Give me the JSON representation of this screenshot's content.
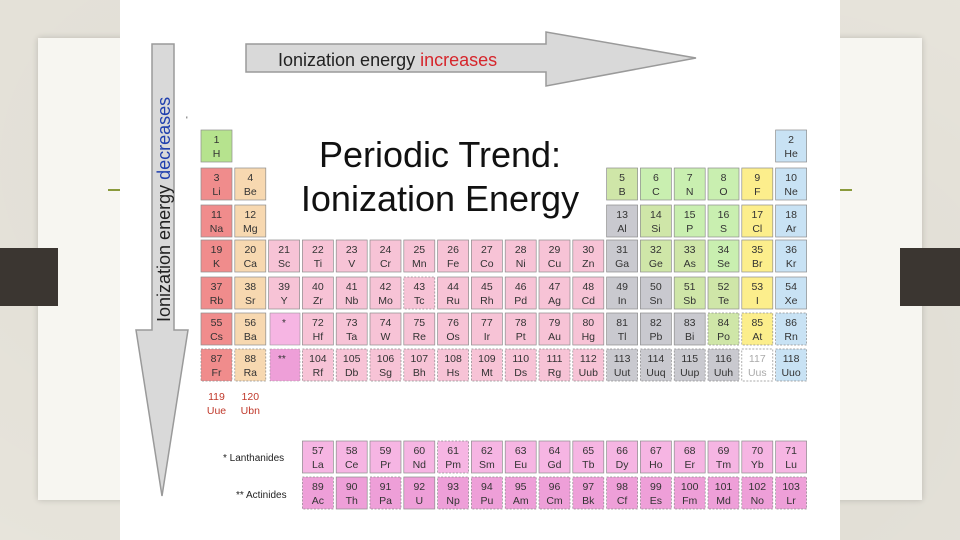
{
  "slide": {
    "title_line1": "Periodic Trend:",
    "title_line2": "Ionization Energy"
  },
  "arrows": {
    "horizontal_prefix": "Ionization energy ",
    "horizontal_emphasis": "increases",
    "vertical_prefix": "Ionization energy ",
    "vertical_emphasis": "decreases"
  },
  "labels": {
    "lanthanides": "* Lanthanides",
    "actinides": "** Actinides",
    "star": "*",
    "double_star": "**"
  },
  "colors": {
    "accent": "#8a9a3c",
    "emphasis": "#d6262c",
    "alkali": "#f08c8c",
    "alkaline_earth": "#f7d8b0",
    "transition": "#f7c3d6",
    "post_transition": "#c9c9cf",
    "metalloid": "#cfe6a8",
    "nonmetal": "#c9efb0",
    "halogen": "#fcee8c",
    "noble_gas": "#c8e2f4",
    "lanthanide": "#f6b5e3",
    "actinide": "#ee9fd8",
    "hydrogen": "#b6e38e"
  },
  "elements": [
    {
      "n": "1",
      "s": "H",
      "c": "hydrogen",
      "col": 1,
      "row": 1
    },
    {
      "n": "2",
      "s": "He",
      "c": "noble_gas",
      "col": 18,
      "row": 1
    },
    {
      "n": "3",
      "s": "Li",
      "c": "alkali",
      "col": 1,
      "row": 2
    },
    {
      "n": "4",
      "s": "Be",
      "c": "alkaline_earth",
      "col": 2,
      "row": 2
    },
    {
      "n": "5",
      "s": "B",
      "c": "metalloid",
      "col": 13,
      "row": 2
    },
    {
      "n": "6",
      "s": "C",
      "c": "nonmetal",
      "col": 14,
      "row": 2
    },
    {
      "n": "7",
      "s": "N",
      "c": "nonmetal",
      "col": 15,
      "row": 2
    },
    {
      "n": "8",
      "s": "O",
      "c": "nonmetal",
      "col": 16,
      "row": 2
    },
    {
      "n": "9",
      "s": "F",
      "c": "halogen",
      "col": 17,
      "row": 2
    },
    {
      "n": "10",
      "s": "Ne",
      "c": "noble_gas",
      "col": 18,
      "row": 2
    },
    {
      "n": "11",
      "s": "Na",
      "c": "alkali",
      "col": 1,
      "row": 3
    },
    {
      "n": "12",
      "s": "Mg",
      "c": "alkaline_earth",
      "col": 2,
      "row": 3
    },
    {
      "n": "13",
      "s": "Al",
      "c": "post_transition",
      "col": 13,
      "row": 3
    },
    {
      "n": "14",
      "s": "Si",
      "c": "metalloid",
      "col": 14,
      "row": 3
    },
    {
      "n": "15",
      "s": "P",
      "c": "nonmetal",
      "col": 15,
      "row": 3
    },
    {
      "n": "16",
      "s": "S",
      "c": "nonmetal",
      "col": 16,
      "row": 3
    },
    {
      "n": "17",
      "s": "Cl",
      "c": "halogen",
      "col": 17,
      "row": 3
    },
    {
      "n": "18",
      "s": "Ar",
      "c": "noble_gas",
      "col": 18,
      "row": 3
    },
    {
      "n": "19",
      "s": "K",
      "c": "alkali",
      "col": 1,
      "row": 4
    },
    {
      "n": "20",
      "s": "Ca",
      "c": "alkaline_earth",
      "col": 2,
      "row": 4
    },
    {
      "n": "21",
      "s": "Sc",
      "c": "transition",
      "col": 3,
      "row": 4
    },
    {
      "n": "22",
      "s": "Ti",
      "c": "transition",
      "col": 4,
      "row": 4
    },
    {
      "n": "23",
      "s": "V",
      "c": "transition",
      "col": 5,
      "row": 4
    },
    {
      "n": "24",
      "s": "Cr",
      "c": "transition",
      "col": 6,
      "row": 4
    },
    {
      "n": "25",
      "s": "Mn",
      "c": "transition",
      "col": 7,
      "row": 4
    },
    {
      "n": "26",
      "s": "Fe",
      "c": "transition",
      "col": 8,
      "row": 4
    },
    {
      "n": "27",
      "s": "Co",
      "c": "transition",
      "col": 9,
      "row": 4
    },
    {
      "n": "28",
      "s": "Ni",
      "c": "transition",
      "col": 10,
      "row": 4
    },
    {
      "n": "29",
      "s": "Cu",
      "c": "transition",
      "col": 11,
      "row": 4
    },
    {
      "n": "30",
      "s": "Zn",
      "c": "transition",
      "col": 12,
      "row": 4
    },
    {
      "n": "31",
      "s": "Ga",
      "c": "post_transition",
      "col": 13,
      "row": 4
    },
    {
      "n": "32",
      "s": "Ge",
      "c": "metalloid",
      "col": 14,
      "row": 4
    },
    {
      "n": "33",
      "s": "As",
      "c": "metalloid",
      "col": 15,
      "row": 4
    },
    {
      "n": "34",
      "s": "Se",
      "c": "nonmetal",
      "col": 16,
      "row": 4
    },
    {
      "n": "35",
      "s": "Br",
      "c": "halogen",
      "col": 17,
      "row": 4
    },
    {
      "n": "36",
      "s": "Kr",
      "c": "noble_gas",
      "col": 18,
      "row": 4
    },
    {
      "n": "37",
      "s": "Rb",
      "c": "alkali",
      "col": 1,
      "row": 5
    },
    {
      "n": "38",
      "s": "Sr",
      "c": "alkaline_earth",
      "col": 2,
      "row": 5
    },
    {
      "n": "39",
      "s": "Y",
      "c": "transition",
      "col": 3,
      "row": 5
    },
    {
      "n": "40",
      "s": "Zr",
      "c": "transition",
      "col": 4,
      "row": 5
    },
    {
      "n": "41",
      "s": "Nb",
      "c": "transition",
      "col": 5,
      "row": 5
    },
    {
      "n": "42",
      "s": "Mo",
      "c": "transition",
      "col": 6,
      "row": 5
    },
    {
      "n": "43",
      "s": "Tc",
      "c": "transition",
      "col": 7,
      "row": 5,
      "d": true
    },
    {
      "n": "44",
      "s": "Ru",
      "c": "transition",
      "col": 8,
      "row": 5
    },
    {
      "n": "45",
      "s": "Rh",
      "c": "transition",
      "col": 9,
      "row": 5
    },
    {
      "n": "46",
      "s": "Pd",
      "c": "transition",
      "col": 10,
      "row": 5
    },
    {
      "n": "47",
      "s": "Ag",
      "c": "transition",
      "col": 11,
      "row": 5
    },
    {
      "n": "48",
      "s": "Cd",
      "c": "transition",
      "col": 12,
      "row": 5
    },
    {
      "n": "49",
      "s": "In",
      "c": "post_transition",
      "col": 13,
      "row": 5
    },
    {
      "n": "50",
      "s": "Sn",
      "c": "post_transition",
      "col": 14,
      "row": 5
    },
    {
      "n": "51",
      "s": "Sb",
      "c": "metalloid",
      "col": 15,
      "row": 5
    },
    {
      "n": "52",
      "s": "Te",
      "c": "metalloid",
      "col": 16,
      "row": 5
    },
    {
      "n": "53",
      "s": "I",
      "c": "halogen",
      "col": 17,
      "row": 5
    },
    {
      "n": "54",
      "s": "Xe",
      "c": "noble_gas",
      "col": 18,
      "row": 5
    },
    {
      "n": "55",
      "s": "Cs",
      "c": "alkali",
      "col": 1,
      "row": 6
    },
    {
      "n": "56",
      "s": "Ba",
      "c": "alkaline_earth",
      "col": 2,
      "row": 6
    },
    {
      "n": "72",
      "s": "Hf",
      "c": "transition",
      "col": 4,
      "row": 6
    },
    {
      "n": "73",
      "s": "Ta",
      "c": "transition",
      "col": 5,
      "row": 6
    },
    {
      "n": "74",
      "s": "W",
      "c": "transition",
      "col": 6,
      "row": 6
    },
    {
      "n": "75",
      "s": "Re",
      "c": "transition",
      "col": 7,
      "row": 6
    },
    {
      "n": "76",
      "s": "Os",
      "c": "transition",
      "col": 8,
      "row": 6
    },
    {
      "n": "77",
      "s": "Ir",
      "c": "transition",
      "col": 9,
      "row": 6
    },
    {
      "n": "78",
      "s": "Pt",
      "c": "transition",
      "col": 10,
      "row": 6
    },
    {
      "n": "79",
      "s": "Au",
      "c": "transition",
      "col": 11,
      "row": 6
    },
    {
      "n": "80",
      "s": "Hg",
      "c": "transition",
      "col": 12,
      "row": 6
    },
    {
      "n": "81",
      "s": "Tl",
      "c": "post_transition",
      "col": 13,
      "row": 6
    },
    {
      "n": "82",
      "s": "Pb",
      "c": "post_transition",
      "col": 14,
      "row": 6
    },
    {
      "n": "83",
      "s": "Bi",
      "c": "post_transition",
      "col": 15,
      "row": 6
    },
    {
      "n": "84",
      "s": "Po",
      "c": "metalloid",
      "col": 16,
      "row": 6,
      "d": true
    },
    {
      "n": "85",
      "s": "At",
      "c": "halogen",
      "col": 17,
      "row": 6,
      "d": true
    },
    {
      "n": "86",
      "s": "Rn",
      "c": "noble_gas",
      "col": 18,
      "row": 6,
      "d": true
    },
    {
      "n": "87",
      "s": "Fr",
      "c": "alkali",
      "col": 1,
      "row": 7,
      "d": true
    },
    {
      "n": "88",
      "s": "Ra",
      "c": "alkaline_earth",
      "col": 2,
      "row": 7,
      "d": true
    },
    {
      "n": "104",
      "s": "Rf",
      "c": "transition",
      "col": 4,
      "row": 7,
      "d": true
    },
    {
      "n": "105",
      "s": "Db",
      "c": "transition",
      "col": 5,
      "row": 7,
      "d": true
    },
    {
      "n": "106",
      "s": "Sg",
      "c": "transition",
      "col": 6,
      "row": 7,
      "d": true
    },
    {
      "n": "107",
      "s": "Bh",
      "c": "transition",
      "col": 7,
      "row": 7,
      "d": true
    },
    {
      "n": "108",
      "s": "Hs",
      "c": "transition",
      "col": 8,
      "row": 7,
      "d": true
    },
    {
      "n": "109",
      "s": "Mt",
      "c": "transition",
      "col": 9,
      "row": 7,
      "d": true
    },
    {
      "n": "110",
      "s": "Ds",
      "c": "transition",
      "col": 10,
      "row": 7,
      "d": true
    },
    {
      "n": "111",
      "s": "Rg",
      "c": "transition",
      "col": 11,
      "row": 7,
      "d": true
    },
    {
      "n": "112",
      "s": "Uub",
      "c": "transition",
      "col": 12,
      "row": 7,
      "d": true
    },
    {
      "n": "113",
      "s": "Uut",
      "c": "post_transition",
      "col": 13,
      "row": 7,
      "d": true
    },
    {
      "n": "114",
      "s": "Uuq",
      "c": "post_transition",
      "col": 14,
      "row": 7,
      "d": true
    },
    {
      "n": "115",
      "s": "Uup",
      "c": "post_transition",
      "col": 15,
      "row": 7,
      "d": true
    },
    {
      "n": "116",
      "s": "Uuh",
      "c": "post_transition",
      "col": 16,
      "row": 7,
      "d": true
    },
    {
      "n": "117",
      "s": "Uus",
      "c": "blank",
      "col": 17,
      "row": 7,
      "d": true
    },
    {
      "n": "118",
      "s": "Uuo",
      "c": "noble_gas",
      "col": 18,
      "row": 7,
      "d": true
    },
    {
      "n": "119",
      "s": "Uue",
      "c": "blank",
      "col": 1,
      "row": 8,
      "nb": true
    },
    {
      "n": "120",
      "s": "Ubn",
      "c": "blank",
      "col": 2,
      "row": 8,
      "nb": true
    },
    {
      "n": "57",
      "s": "La",
      "c": "lanthanide",
      "col": 4,
      "row": 9
    },
    {
      "n": "58",
      "s": "Ce",
      "c": "lanthanide",
      "col": 5,
      "row": 9
    },
    {
      "n": "59",
      "s": "Pr",
      "c": "lanthanide",
      "col": 6,
      "row": 9
    },
    {
      "n": "60",
      "s": "Nd",
      "c": "lanthanide",
      "col": 7,
      "row": 9
    },
    {
      "n": "61",
      "s": "Pm",
      "c": "lanthanide",
      "col": 8,
      "row": 9,
      "d": true
    },
    {
      "n": "62",
      "s": "Sm",
      "c": "lanthanide",
      "col": 9,
      "row": 9
    },
    {
      "n": "63",
      "s": "Eu",
      "c": "lanthanide",
      "col": 10,
      "row": 9
    },
    {
      "n": "64",
      "s": "Gd",
      "c": "lanthanide",
      "col": 11,
      "row": 9
    },
    {
      "n": "65",
      "s": "Tb",
      "c": "lanthanide",
      "col": 12,
      "row": 9
    },
    {
      "n": "66",
      "s": "Dy",
      "c": "lanthanide",
      "col": 13,
      "row": 9
    },
    {
      "n": "67",
      "s": "Ho",
      "c": "lanthanide",
      "col": 14,
      "row": 9
    },
    {
      "n": "68",
      "s": "Er",
      "c": "lanthanide",
      "col": 15,
      "row": 9
    },
    {
      "n": "69",
      "s": "Tm",
      "c": "lanthanide",
      "col": 16,
      "row": 9
    },
    {
      "n": "70",
      "s": "Yb",
      "c": "lanthanide",
      "col": 17,
      "row": 9
    },
    {
      "n": "71",
      "s": "Lu",
      "c": "lanthanide",
      "col": 18,
      "row": 9
    },
    {
      "n": "89",
      "s": "Ac",
      "c": "actinide",
      "col": 4,
      "row": 10,
      "d": true
    },
    {
      "n": "90",
      "s": "Th",
      "c": "actinide",
      "col": 5,
      "row": 10
    },
    {
      "n": "91",
      "s": "Pa",
      "c": "actinide",
      "col": 6,
      "row": 10,
      "d": true
    },
    {
      "n": "92",
      "s": "U",
      "c": "actinide",
      "col": 7,
      "row": 10
    },
    {
      "n": "93",
      "s": "Np",
      "c": "actinide",
      "col": 8,
      "row": 10,
      "d": true
    },
    {
      "n": "94",
      "s": "Pu",
      "c": "actinide",
      "col": 9,
      "row": 10,
      "d": true
    },
    {
      "n": "95",
      "s": "Am",
      "c": "actinide",
      "col": 10,
      "row": 10,
      "d": true
    },
    {
      "n": "96",
      "s": "Cm",
      "c": "actinide",
      "col": 11,
      "row": 10,
      "d": true
    },
    {
      "n": "97",
      "s": "Bk",
      "c": "actinide",
      "col": 12,
      "row": 10,
      "d": true
    },
    {
      "n": "98",
      "s": "Cf",
      "c": "actinide",
      "col": 13,
      "row": 10,
      "d": true
    },
    {
      "n": "99",
      "s": "Es",
      "c": "actinide",
      "col": 14,
      "row": 10,
      "d": true
    },
    {
      "n": "100",
      "s": "Fm",
      "c": "actinide",
      "col": 15,
      "row": 10,
      "d": true
    },
    {
      "n": "101",
      "s": "Md",
      "c": "actinide",
      "col": 16,
      "row": 10,
      "d": true
    },
    {
      "n": "102",
      "s": "No",
      "c": "actinide",
      "col": 17,
      "row": 10,
      "d": true
    },
    {
      "n": "103",
      "s": "Lr",
      "c": "actinide",
      "col": 18,
      "row": 10,
      "d": true
    }
  ]
}
